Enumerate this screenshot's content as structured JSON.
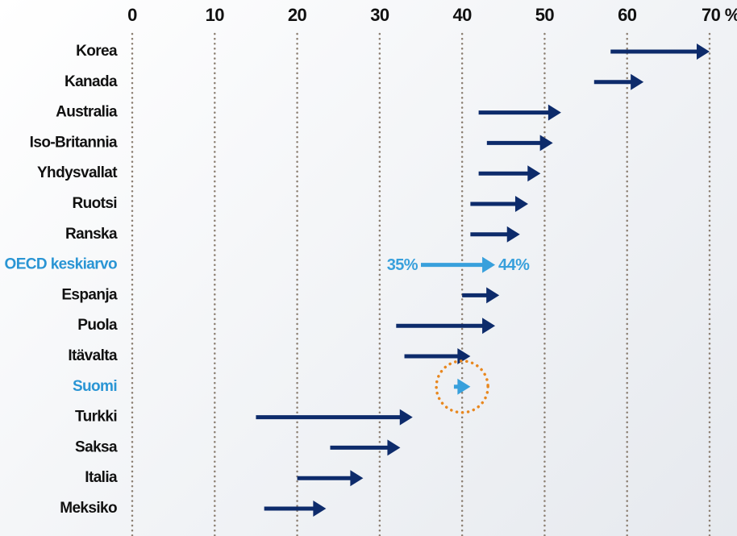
{
  "chart_data": {
    "type": "arrow",
    "categories": [
      "Korea",
      "Kanada",
      "Australia",
      "Iso-Britannia",
      "Yhdysvallat",
      "Ruotsi",
      "Ranska",
      "OECD keskiarvo",
      "Espanja",
      "Puola",
      "Itävalta",
      "Suomi",
      "Turkki",
      "Saksa",
      "Italia",
      "Meksiko"
    ],
    "start": [
      58,
      56,
      42,
      43,
      42,
      41,
      41,
      35,
      40,
      32,
      33,
      39,
      15,
      24,
      20,
      16
    ],
    "end": [
      70,
      62,
      52,
      51,
      49.5,
      48,
      47,
      44,
      44.5,
      44,
      41,
      41,
      34,
      32.5,
      28,
      23.5
    ],
    "start_value_labels": [
      null,
      null,
      null,
      null,
      null,
      null,
      null,
      "35%",
      null,
      null,
      null,
      null,
      null,
      null,
      null,
      null
    ],
    "end_value_labels": [
      null,
      null,
      null,
      null,
      null,
      null,
      null,
      "44%",
      null,
      null,
      null,
      null,
      null,
      null,
      null,
      null
    ],
    "colors": [
      "#0d2b6b",
      "#0d2b6b",
      "#0d2b6b",
      "#0d2b6b",
      "#0d2b6b",
      "#0d2b6b",
      "#0d2b6b",
      "#38a0dc",
      "#0d2b6b",
      "#0d2b6b",
      "#0d2b6b",
      "#38a0dc",
      "#0d2b6b",
      "#0d2b6b",
      "#0d2b6b",
      "#0d2b6b"
    ],
    "label_colors": [
      "#111111",
      "#111111",
      "#111111",
      "#111111",
      "#111111",
      "#111111",
      "#111111",
      "#2a95d4",
      "#111111",
      "#111111",
      "#111111",
      "#2a95d4",
      "#111111",
      "#111111",
      "#111111",
      "#111111"
    ],
    "circled_category": "Suomi",
    "circle_color": "#e8871e",
    "xlim": [
      0,
      70
    ],
    "xticks": [
      0,
      10,
      20,
      30,
      40,
      50,
      60,
      {
        "value": 70,
        "label": "70 %"
      }
    ],
    "grid": true
  }
}
